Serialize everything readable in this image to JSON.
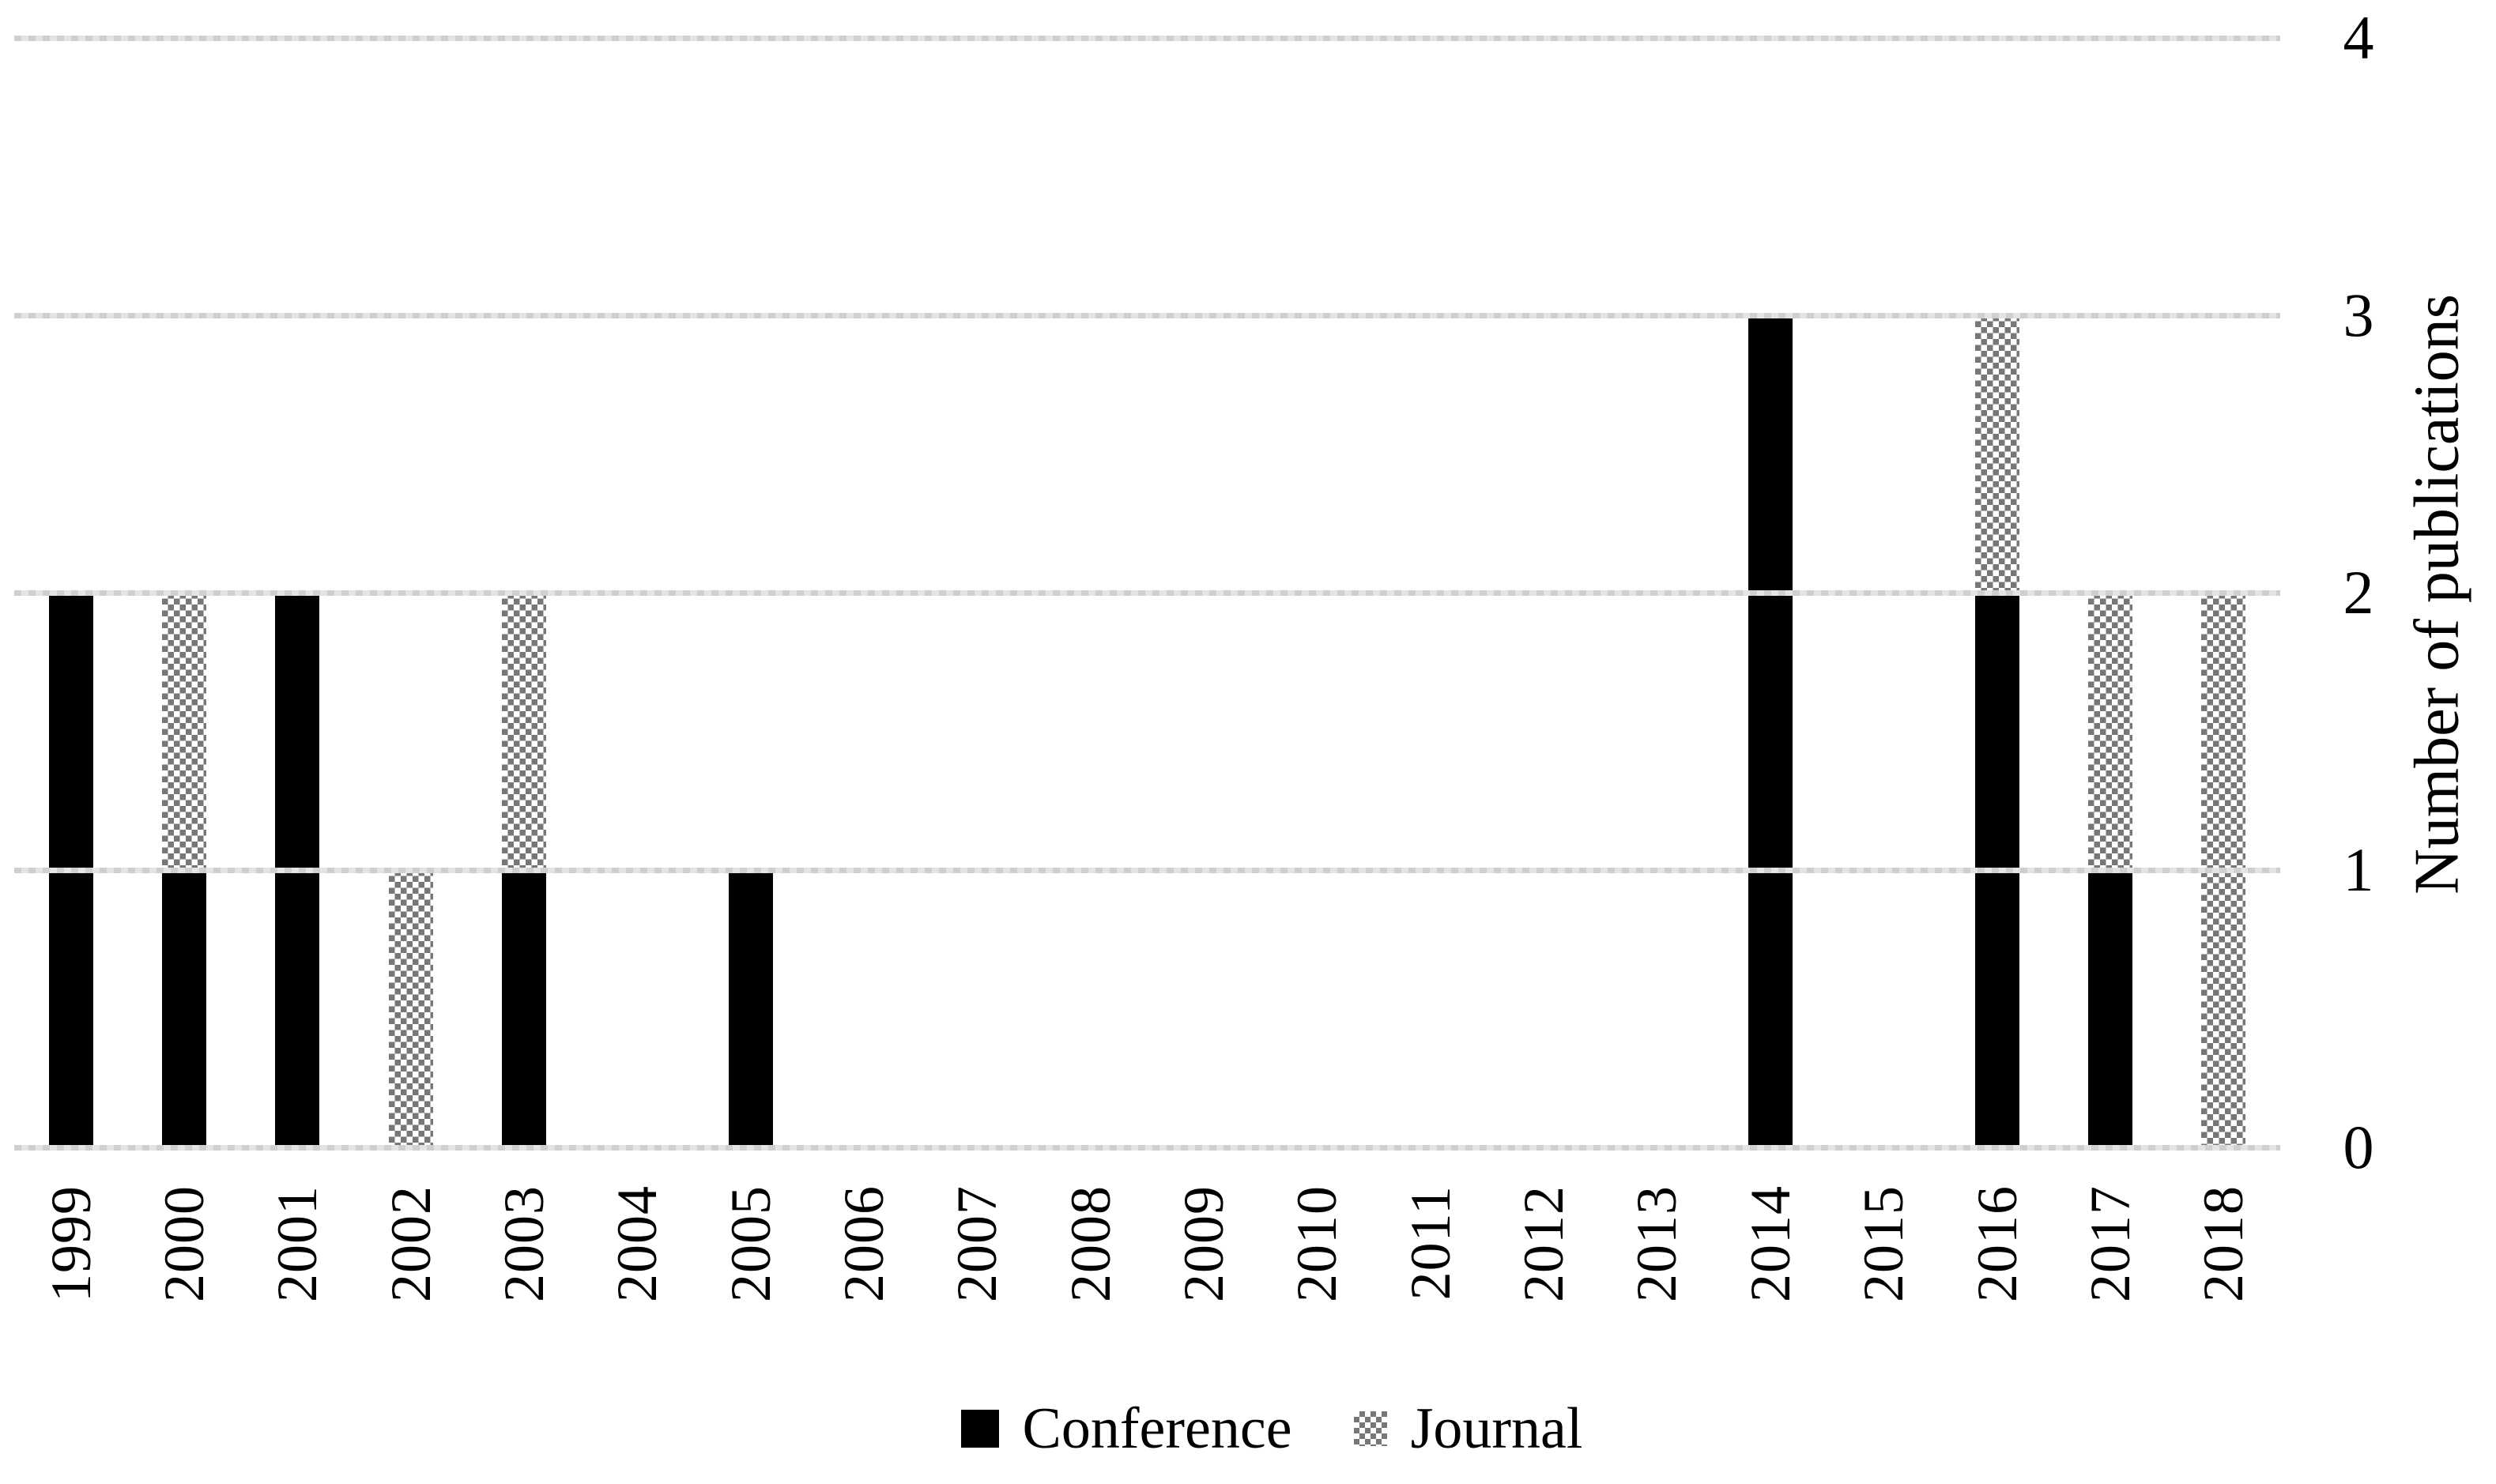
{
  "chart_data": {
    "type": "bar",
    "stacked": true,
    "title": "",
    "categories": [
      "1999",
      "2000",
      "2001",
      "2002",
      "2003",
      "2004",
      "2005",
      "2006",
      "2007",
      "2008",
      "2009",
      "2010",
      "2011",
      "2012",
      "2013",
      "2014",
      "2015",
      "2016",
      "2017",
      "2018"
    ],
    "series": [
      {
        "name": "Conference",
        "color": "#000000",
        "fill": "solid",
        "values": [
          2,
          1,
          2,
          0,
          1,
          0,
          1,
          0,
          0,
          0,
          0,
          0,
          0,
          0,
          0,
          3,
          0,
          2,
          1,
          0
        ]
      },
      {
        "name": "Journal",
        "color": "#777777",
        "fill": "checker-pattern",
        "values": [
          0,
          1,
          0,
          1,
          1,
          0,
          0,
          0,
          0,
          0,
          0,
          0,
          0,
          0,
          0,
          0,
          0,
          1,
          1,
          2
        ]
      }
    ],
    "xlabel": "",
    "ylabel": "Number of publications",
    "ylim": [
      0,
      4
    ],
    "yticks": [
      0,
      1,
      2,
      3,
      4
    ],
    "y_axis_side": "right",
    "grid": true,
    "gridline_color": "#d9d9d9",
    "legend_position": "bottom",
    "legend": [
      "Conference",
      "Journal"
    ]
  }
}
